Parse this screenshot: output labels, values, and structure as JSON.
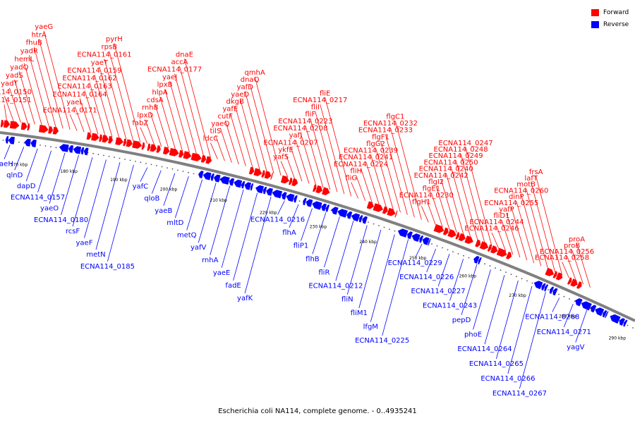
{
  "legend": {
    "forward_label": "Forward",
    "reverse_label": "Reverse",
    "forward_color": "#ff0000",
    "reverse_color": "#0000ff"
  },
  "caption": "Escherichia coli NA114, complete genome. - 0..4935241",
  "colors": {
    "forward": "#ff0000",
    "reverse": "#0000ff",
    "backbone": "#808080"
  },
  "ticks": [
    "170 kbp",
    "180 kbp",
    "190 kbp",
    "200 kbp",
    "210 kbp",
    "220 kbp",
    "230 kbp",
    "240 kbp",
    "250 kbp",
    "260 kbp",
    "270 kbp",
    "280 kbp",
    "290 kbp"
  ],
  "forward_labels": [
    "ECNA114_0151",
    "ECNA114_0150",
    "yadT",
    "yadS",
    "yadQ",
    "hemL",
    "yadR",
    "fhuB",
    "htrA",
    "yaeG",
    "ECNA114_0171",
    "yaeL",
    "ECNA114_0164",
    "ECNA114_0163",
    "ECNA114_0162",
    "ECNA114_0159",
    "yaeT",
    "ECNA114_0161",
    "rpsB",
    "pyrH",
    "fabZ",
    "lpxD",
    "rnhB",
    "cdsA",
    "hlpA",
    "lpxB",
    "yaeJ",
    "ECNA114_0177",
    "accA",
    "dnaE",
    "ldcC",
    "tilS",
    "yaeQ",
    "cutF",
    "yafE",
    "dkgB",
    "yaeD",
    "yafD",
    "dnaQ",
    "qmhA",
    "yafS",
    "ykfE",
    "ECNA114_0207",
    "yafJ",
    "ECNA114_0208",
    "ECNA114_0223",
    "fliF",
    "fliI",
    "ECNA114_0217",
    "fliE",
    "fliG",
    "fliH",
    "ECNA114_0224",
    "ECNA114_0241",
    "ECNA114_0239",
    "flgG2",
    "flgF1",
    "ECNA114_0233",
    "ECNA114_0232",
    "flgC1",
    "flgH1",
    "ECNA114_0230",
    "flgE1",
    "flgI2",
    "ECNA114_0242",
    "ECNA114_0240",
    "ECNA114_0250",
    "ECNA114_0249",
    "ECNA114_0248",
    "ECNA114_0247",
    "ECNA114_0246",
    "ECNA114_0244",
    "fliD1",
    "yafP",
    "ECNA114_0255",
    "dinP",
    "ECNA114_0260",
    "motB",
    "lafT",
    "frsA",
    "ECNA114_0258",
    "ECNA114_0256",
    "proB",
    "proA"
  ],
  "reverse_labels": [
    "yaeH",
    "qlnD",
    "dapD",
    "ECNA114_0157",
    "yaeO",
    "ECNA114_0180",
    "rcsF",
    "yaeF",
    "metN",
    "ECNA114_0185",
    "yafC",
    "qloB",
    "yaeB",
    "mltD",
    "metQ",
    "yafV",
    "rnhA",
    "yaeE",
    "fadE",
    "yafK",
    "ECNA114_0216",
    "flhA",
    "fliP1",
    "flhB",
    "fliR",
    "ECNA114_0212",
    "fliN",
    "fliM1",
    "lfgM",
    "ECNA114_0225",
    "ECNA114_0229",
    "ECNA114_0226",
    "ECNA114_0227",
    "ECNA114_0243",
    "pepD",
    "phoE",
    "ECNA114_0264",
    "ECNA114_0265",
    "ECNA114_0266",
    "ECNA114_0267",
    "ECNA114_0268",
    "ECNA114_0271",
    "yagV"
  ]
}
